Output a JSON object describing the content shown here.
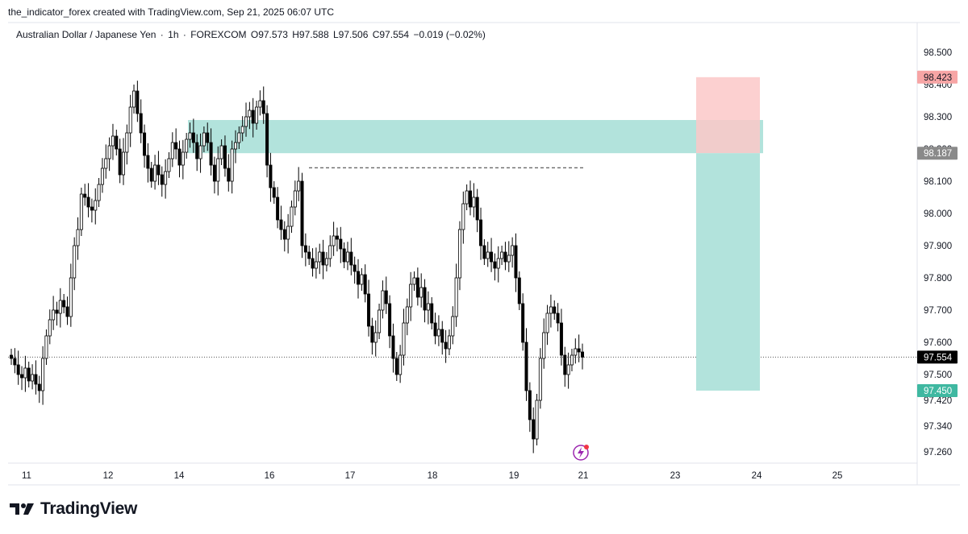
{
  "header": {
    "attribution": "the_indicator_forex created with TradingView.com, Sep 21, 2025 06:07 UTC"
  },
  "legend": {
    "symbol": "Australian Dollar / Japanese Yen",
    "interval": "1h",
    "exchange": "FOREXCOM",
    "open": "O97.573",
    "high": "H97.588",
    "low": "L97.506",
    "close": "C97.554",
    "change": "−0.019 (−0.02%)"
  },
  "footer": {
    "brand": "TradingView"
  },
  "colors": {
    "candle_up": "#ffffff",
    "candle_down": "#000000",
    "wick": "#000000",
    "supply_zone": "#b2e3dc",
    "stop_zone": "#fbc8c8",
    "target_zone": "#b2e3dc",
    "price_badge": "#000000",
    "stop_badge": "#f7a5a5",
    "entry_badge": "#8a8a8a",
    "target_badge": "#3fb8a1",
    "event_icon": "#9c27b0"
  },
  "chart_data": {
    "type": "candlestick",
    "x_ticks": [
      "11",
      "12",
      "14",
      "16",
      "17",
      "18",
      "19",
      "21",
      "23",
      "24",
      "25"
    ],
    "y_ticks": [
      "98.500",
      "98.400",
      "98.300",
      "98.200",
      "98.100",
      "98.000",
      "97.900",
      "97.800",
      "97.700",
      "97.600",
      "97.500",
      "97.420",
      "97.340",
      "97.260"
    ],
    "price_labels": {
      "stop": "98.423",
      "entry": "98.187",
      "current": "97.554",
      "target": "97.450"
    },
    "levels": {
      "supply_zone": [
        98.187,
        98.29
      ],
      "dashed_high": 98.142,
      "current_price": 97.554,
      "position_stop": 98.423,
      "position_entry": 98.187,
      "position_target": 97.45
    },
    "candles_close": [
      97.55,
      97.53,
      97.5,
      97.49,
      97.52,
      97.48,
      97.5,
      97.47,
      97.45,
      97.55,
      97.62,
      97.67,
      97.7,
      97.69,
      97.73,
      97.71,
      97.68,
      97.8,
      97.9,
      97.95,
      98.06,
      98.05,
      98.02,
      98.01,
      98.04,
      98.09,
      98.14,
      98.17,
      98.21,
      98.24,
      98.2,
      98.12,
      98.19,
      98.25,
      98.33,
      98.38,
      98.31,
      98.25,
      98.18,
      98.14,
      98.1,
      98.15,
      98.12,
      98.09,
      98.13,
      98.17,
      98.22,
      98.2,
      98.15,
      98.19,
      98.23,
      98.25,
      98.22,
      98.17,
      98.21,
      98.25,
      98.22,
      98.15,
      98.1,
      98.17,
      98.21,
      98.14,
      98.1,
      98.2,
      98.22,
      98.25,
      98.27,
      98.3,
      98.32,
      98.28,
      98.33,
      98.35,
      98.31,
      98.15,
      98.08,
      98.05,
      97.98,
      97.95,
      97.92,
      97.96,
      98.02,
      98.07,
      98.1,
      97.9,
      97.88,
      97.86,
      97.83,
      97.85,
      97.88,
      97.84,
      97.86,
      97.9,
      97.93,
      97.92,
      97.89,
      97.85,
      97.88,
      97.84,
      97.82,
      97.78,
      97.81,
      97.75,
      97.65,
      97.6,
      97.63,
      97.7,
      97.76,
      97.72,
      97.62,
      97.55,
      97.5,
      97.56,
      97.66,
      97.71,
      97.78,
      97.8,
      97.74,
      97.77,
      97.7,
      97.72,
      97.66,
      97.62,
      97.64,
      97.6,
      97.58,
      97.62,
      97.68,
      97.8,
      97.95,
      98.03,
      98.07,
      98.02,
      98.05,
      97.98,
      97.9,
      97.86,
      97.88,
      97.85,
      97.83,
      97.86,
      97.88,
      97.85,
      97.87,
      97.9,
      97.8,
      97.72,
      97.6,
      97.45,
      97.36,
      97.3,
      97.42,
      97.55,
      97.63,
      97.69,
      97.71,
      97.69,
      97.66,
      97.56,
      97.5,
      97.53,
      97.56,
      97.58,
      97.57,
      97.554
    ]
  }
}
